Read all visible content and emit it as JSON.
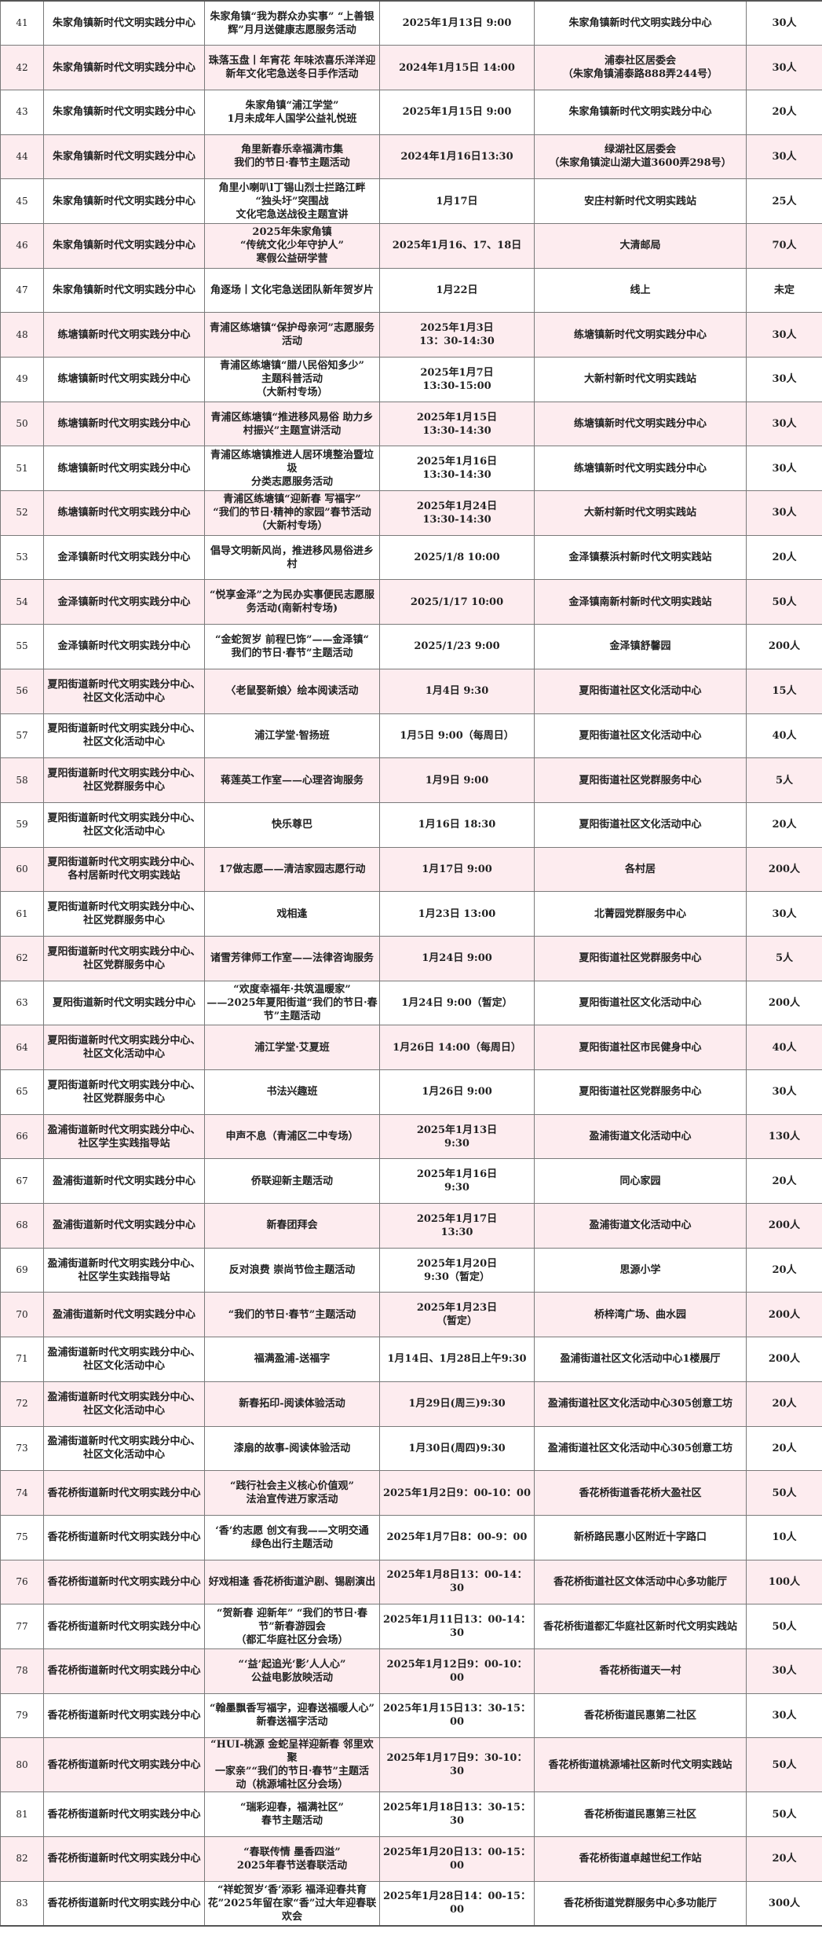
{
  "colors": {
    "alt_row": "#fdecef",
    "border": "#7a7a7a"
  },
  "rows": [
    {
      "no": "41",
      "org": "朱家角镇新时代文明实践分中心",
      "activity": "朱家角镇“我为群众办实事” “上善银\n辉”月月送健康志愿服务活动",
      "time": "2025年1月13日 9:00",
      "place": "朱家角镇新时代文明实践分中心",
      "count": "30人"
    },
    {
      "no": "42",
      "org": "朱家角镇新时代文明实践分中心",
      "activity": "珠落玉盘丨年宵花 年味浓喜乐洋洋迎\n新年文化宅急送冬日手作活动",
      "time": "2024年1月15日 14:00",
      "place": "浦泰社区居委会\n（朱家角镇浦泰路888弄244号）",
      "count": "30人"
    },
    {
      "no": "43",
      "org": "朱家角镇新时代文明实践分中心",
      "activity": "朱家角镇“浦江学堂”\n1月未成年人国学公益礼悦班",
      "time": "2025年1月15日 9:00",
      "place": "朱家角镇新时代文明实践分中心",
      "count": "20人"
    },
    {
      "no": "44",
      "org": "朱家角镇新时代文明实践分中心",
      "activity": "角里新春乐幸福满市集\n我们的节日·春节主题活动",
      "time": "2024年1月16日13:30",
      "place": "绿湖社区居委会\n（朱家角镇淀山湖大道3600弄298号）",
      "count": "30人"
    },
    {
      "no": "45",
      "org": "朱家角镇新时代文明实践分中心",
      "activity": "角里小喇叭l丁锡山烈士拦路江畔\n“独头圩”突围战\n文化宅急送战役主题宣讲",
      "time": "1月17日",
      "place": "安庄村新时代文明实践站",
      "count": "25人"
    },
    {
      "no": "46",
      "org": "朱家角镇新时代文明实践分中心",
      "activity": "2025年朱家角镇\n“传统文化少年守护人”\n寒假公益研学营",
      "time": "2025年1月16、17、18日",
      "place": "大清邮局",
      "count": "70人"
    },
    {
      "no": "47",
      "org": "朱家角镇新时代文明实践分中心",
      "activity": "角逐场丨文化宅急送团队新年贺岁片",
      "time": "1月22日",
      "place": "线上",
      "count": "未定"
    },
    {
      "no": "48",
      "org": "练塘镇新时代文明实践分中心",
      "activity": "青浦区练塘镇“保护母亲河”志愿服务\n活动",
      "time": "2025年1月3日\n13：30-14:30",
      "place": "练塘镇新时代文明实践分中心",
      "count": "30人"
    },
    {
      "no": "49",
      "org": "练塘镇新时代文明实践分中心",
      "activity": "青浦区练塘镇“腊八民俗知多少”\n主题科普活动\n（大新村专场）",
      "time": "2025年1月7日\n13:30-15:00",
      "place": "大新村新时代文明实践站",
      "count": "30人"
    },
    {
      "no": "50",
      "org": "练塘镇新时代文明实践分中心",
      "activity": "青浦区练塘镇“推进移风易俗 助力乡\n村振兴”主题宣讲活动",
      "time": "2025年1月15日\n13:30-14:30",
      "place": "练塘镇新时代文明实践分中心",
      "count": "30人"
    },
    {
      "no": "51",
      "org": "练塘镇新时代文明实践分中心",
      "activity": "青浦区练塘镇推进人居环境整治暨垃圾\n分类志愿服务活动",
      "time": "2025年1月16日\n13:30-14:30",
      "place": "练塘镇新时代文明实践分中心",
      "count": "30人"
    },
    {
      "no": "52",
      "org": "练塘镇新时代文明实践分中心",
      "activity": "青浦区练塘镇“迎新春 写福字”\n“我们的节日·精神的家园”春节活动\n（大新村专场）",
      "time": "2025年1月24日\n13:30-14:30",
      "place": "大新村新时代文明实践站",
      "count": "30人"
    },
    {
      "no": "53",
      "org": "金泽镇新时代文明实践分中心",
      "activity": "倡导文明新风尚，推进移风易俗进乡村",
      "time": "2025/1/8 10:00",
      "place": "金泽镇蔡浜村新时代文明实践站",
      "count": "20人"
    },
    {
      "no": "54",
      "org": "金泽镇新时代文明实践分中心",
      "activity": "“悦享金泽”之为民办实事便民志愿服\n务活动(南新村专场)",
      "time": "2025/1/17 10:00",
      "place": "金泽镇南新村新时代文明实践站",
      "count": "50人"
    },
    {
      "no": "55",
      "org": "金泽镇新时代文明实践分中心",
      "activity": "“金蛇贺岁 前程巳饰”——金泽镇“\n我们的节日·春节”主题活动",
      "time": "2025/1/23 9:00",
      "place": "金泽镇舒馨园",
      "count": "200人"
    },
    {
      "no": "56",
      "org": "夏阳街道新时代文明实践分中心、\n社区文化活动中心",
      "activity": "〈老鼠娶新娘〉绘本阅读活动",
      "time": "1月4日 9:30",
      "place": "夏阳街道社区文化活动中心",
      "count": "15人"
    },
    {
      "no": "57",
      "org": "夏阳街道新时代文明实践分中心、\n社区文化活动中心",
      "activity": "浦江学堂·智扬班",
      "time": "1月5日 9:00（每周日）",
      "place": "夏阳街道社区文化活动中心",
      "count": "40人"
    },
    {
      "no": "58",
      "org": "夏阳街道新时代文明实践分中心、\n社区党群服务中心",
      "activity": "蒋莲英工作室——心理咨询服务",
      "time": "1月9日 9:00",
      "place": "夏阳街道社区党群服务中心",
      "count": "5人"
    },
    {
      "no": "59",
      "org": "夏阳街道新时代文明实践分中心、\n社区文化活动中心",
      "activity": "快乐尊巴",
      "time": "1月16日 18:30",
      "place": "夏阳街道社区文化活动中心",
      "count": "20人"
    },
    {
      "no": "60",
      "org": "夏阳街道新时代文明实践分中心、\n各村居新时代文明实践站",
      "activity": "17做志愿——清洁家园志愿行动",
      "time": "1月17日 9:00",
      "place": "各村居",
      "count": "200人"
    },
    {
      "no": "61",
      "org": "夏阳街道新时代文明实践分中心、\n社区党群服务中心",
      "activity": "戏相逢",
      "time": "1月23日 13:00",
      "place": "北菁园党群服务中心",
      "count": "30人"
    },
    {
      "no": "62",
      "org": "夏阳街道新时代文明实践分中心、\n社区党群服务中心",
      "activity": "诸雪芳律师工作室——法律咨询服务",
      "time": "1月24日 9:00",
      "place": "夏阳街道社区党群服务中心",
      "count": "5人"
    },
    {
      "no": "63",
      "org": "夏阳街道新时代文明实践分中心",
      "activity": "“欢度幸福年·共筑温暖家”\n——2025年夏阳街道“我们的节日·春\n节”主题活动",
      "time": "1月24日 9:00（暂定）",
      "place": "夏阳街道社区文化活动中心",
      "count": "200人"
    },
    {
      "no": "64",
      "org": "夏阳街道新时代文明实践分中心、\n社区文化活动中心",
      "activity": "浦江学堂·艾夏班",
      "time": "1月26日 14:00（每周日）",
      "place": "夏阳街道社区市民健身中心",
      "count": "40人"
    },
    {
      "no": "65",
      "org": "夏阳街道新时代文明实践分中心、\n社区党群服务中心",
      "activity": "书法兴趣班",
      "time": "1月26日 9:00",
      "place": "夏阳街道社区党群服务中心",
      "count": "30人"
    },
    {
      "no": "66",
      "org": "盈浦街道新时代文明实践分中心、\n社区学生实践指导站",
      "activity": "申声不息（青浦区二中专场）",
      "time": "2025年1月13日\n9:30",
      "place": "盈浦街道文化活动中心",
      "count": "130人"
    },
    {
      "no": "67",
      "org": "盈浦街道新时代文明实践分中心",
      "activity": "侨联迎新主题活动",
      "time": "2025年1月16日\n9:30",
      "place": "同心家园",
      "count": "20人"
    },
    {
      "no": "68",
      "org": "盈浦街道新时代文明实践分中心",
      "activity": "新春团拜会",
      "time": "2025年1月17日\n13:30",
      "place": "盈浦街道文化活动中心",
      "count": "200人"
    },
    {
      "no": "69",
      "org": "盈浦街道新时代文明实践分中心、\n社区学生实践指导站",
      "activity": "反对浪费 崇尚节俭主题活动",
      "time": "2025年1月20日\n9:30（暂定）",
      "place": "思源小学",
      "count": "20人"
    },
    {
      "no": "70",
      "org": "盈浦街道新时代文明实践分中心",
      "activity": "“我们的节日·春节”主题活动",
      "time": "2025年1月23日\n（暂定）",
      "place": "桥梓湾广场、曲水园",
      "count": "200人"
    },
    {
      "no": "71",
      "org": "盈浦街道新时代文明实践分中心、\n社区文化活动中心",
      "activity": "福满盈浦-送福字",
      "time": "1月14日、1月28日上午9:30",
      "place": "盈浦街道社区文化活动中心1楼展厅",
      "count": "200人"
    },
    {
      "no": "72",
      "org": "盈浦街道新时代文明实践分中心、\n社区文化活动中心",
      "activity": "新春拓印-阅读体验活动",
      "time": "1月29日(周三)9:30",
      "place": "盈浦街道社区文化活动中心305创意工坊",
      "count": "20人"
    },
    {
      "no": "73",
      "org": "盈浦街道新时代文明实践分中心、\n社区文化活动中心",
      "activity": "漆扇的故事-阅读体验活动",
      "time": "1月30日(周四)9:30",
      "place": "盈浦街道社区文化活动中心305创意工坊",
      "count": "20人"
    },
    {
      "no": "74",
      "org": "香花桥街道新时代文明实践分中心",
      "activity": "“践行社会主义核心价值观”\n法治宣传进万家活动",
      "time": "2025年1月2日9：00-10：00",
      "place": "香花桥街道香花桥大盈社区",
      "count": "50人"
    },
    {
      "no": "75",
      "org": "香花桥街道新时代文明实践分中心",
      "activity": "‘香’约志愿 创文有我——文明交通\n绿色出行主题活动",
      "time": "2025年1月7日8：00-9：00",
      "place": "新桥路民惠小区附近十字路口",
      "count": "10人"
    },
    {
      "no": "76",
      "org": "香花桥街道新时代文明实践分中心",
      "activity": "好戏相逢 香花桥街道沪剧、锡剧演出",
      "time": "2025年1月8日13：00-14：30",
      "place": "香花桥街道社区文体活动中心多功能厅",
      "count": "100人"
    },
    {
      "no": "77",
      "org": "香花桥街道新时代文明实践分中心",
      "activity": "“贺新春 迎新年” “我们的节日·春\n节”新春游园会\n（都汇华庭社区分会场）",
      "time": "2025年1月11日13：00-14：30",
      "place": "香花桥街道都汇华庭社区新时代文明实践站",
      "count": "50人"
    },
    {
      "no": "78",
      "org": "香花桥街道新时代文明实践分中心",
      "activity": "“‘益’起追光‘影’人人心”\n公益电影放映活动",
      "time": "2025年1月12日9：00-10：00",
      "place": "香花桥街道天一村",
      "count": "30人"
    },
    {
      "no": "79",
      "org": "香花桥街道新时代文明实践分中心",
      "activity": "“翰墨飘香写福字，迎春送福暖人心”\n新春送福字活动",
      "time": "2025年1月15日13：30-15：00",
      "place": "香花桥街道民惠第二社区",
      "count": "30人"
    },
    {
      "no": "80",
      "org": "香花桥街道新时代文明实践分中心",
      "activity": "“HUI-桃源 金蛇呈祥迎新春 邻里欢聚\n一家亲”“我们的节日·春节”主题活\n动（桃源埔社区分会场）",
      "time": "2025年1月17日9：30-10：30",
      "place": "香花桥街道桃源埔社区新时代文明实践站",
      "count": "50人"
    },
    {
      "no": "81",
      "org": "香花桥街道新时代文明实践分中心",
      "activity": "“瑞彩迎春，福满社区”\n春节主题活动",
      "time": "2025年1月18日13：30-15：30",
      "place": "香花桥街道民惠第三社区",
      "count": "50人"
    },
    {
      "no": "82",
      "org": "香花桥街道新时代文明实践分中心",
      "activity": "“春联传情 墨香四溢”\n2025年春节送春联活动",
      "time": "2025年1月20日13：00-15：00",
      "place": "香花桥街道卓越世纪工作站",
      "count": "20人"
    },
    {
      "no": "83",
      "org": "香花桥街道新时代文明实践分中心",
      "activity": "“祥蛇贺岁‘香’添彩 福泽迎春共育\n花”2025年留在家“香”过大年迎春联\n欢会",
      "time": "2025年1月28日14：00-15：00",
      "place": "香花桥街道党群服务中心多功能厅",
      "count": "300人"
    }
  ]
}
